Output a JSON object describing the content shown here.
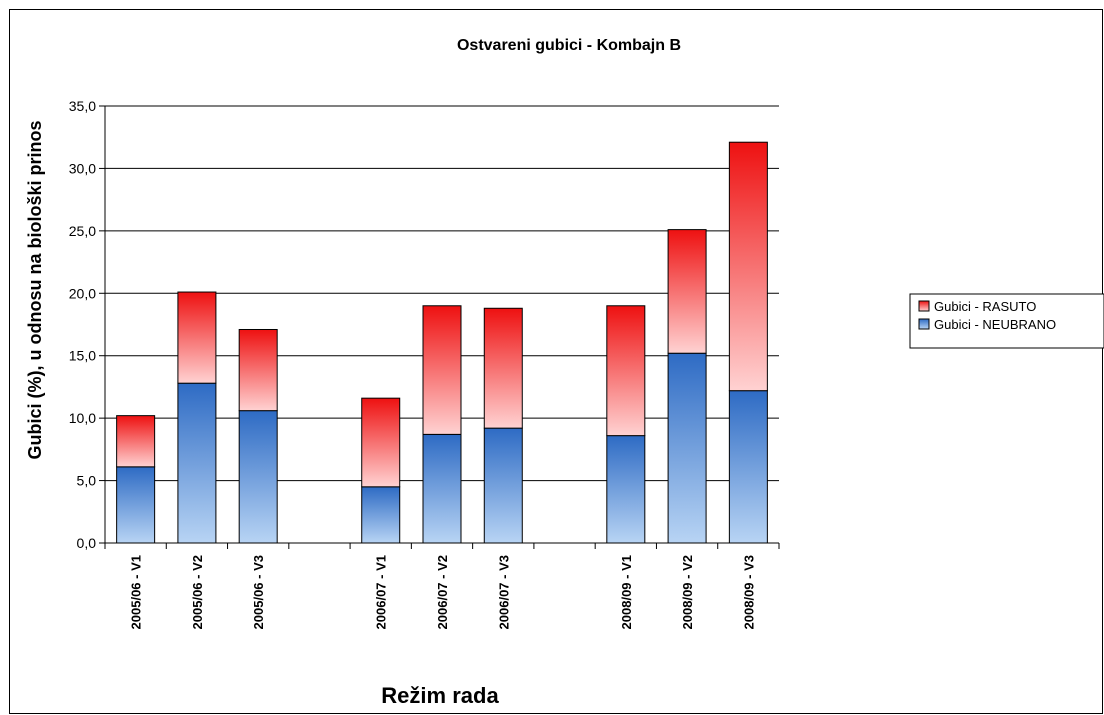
{
  "chart_data": {
    "type": "bar",
    "stacked": true,
    "title": "Ostvareni gubici - Kombajn B",
    "xlabel": "Režim rada",
    "ylabel": "Gubici (%), u odnosu na biološki prinos",
    "ylim": [
      0,
      35
    ],
    "ytick_step": 5,
    "ytick_labels": [
      "0,0",
      "5,0",
      "10,0",
      "15,0",
      "20,0",
      "25,0",
      "30,0",
      "35,0"
    ],
    "grid": true,
    "legend_position": "right",
    "categories": [
      "2005/06 - V1",
      "2005/06 - V2",
      "2005/06 - V3",
      "",
      "2006/07 - V1",
      "2006/07 - V2",
      "2006/07 - V3",
      "",
      "2008/09 - V1",
      "2008/09 - V2",
      "2008/09 - V3"
    ],
    "series": [
      {
        "name": "Gubici - NEUBRANO",
        "color_dark": "#2e6bc4",
        "color_light": "#b8d4f4",
        "values": [
          6.1,
          12.8,
          10.6,
          null,
          4.5,
          8.7,
          9.2,
          null,
          8.6,
          15.2,
          12.2
        ]
      },
      {
        "name": "Gubici - RASUTO",
        "color_dark": "#ee1111",
        "color_light": "#ffd2d2",
        "values": [
          4.1,
          7.3,
          6.5,
          null,
          7.1,
          10.3,
          9.6,
          null,
          10.4,
          9.9,
          19.9
        ]
      }
    ]
  }
}
